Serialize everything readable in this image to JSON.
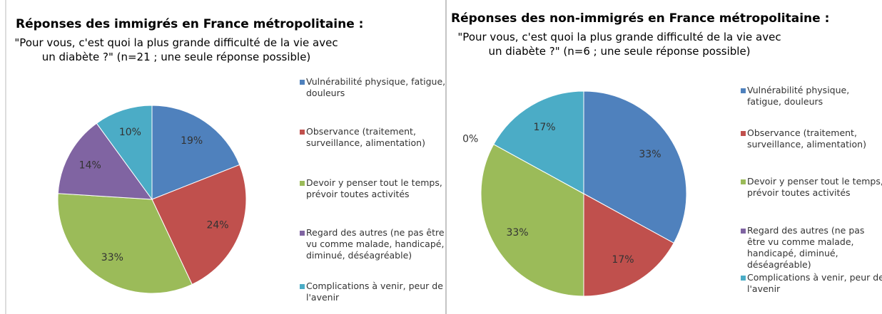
{
  "chart_data": [
    {
      "type": "pie",
      "title": "Réponses des immigrés en France métropolitaine :",
      "subtitle": "\"Pour vous, c'est quoi la plus grande difficulté de la vie avec un diabète ?\" (n=21 ; une seule réponse possible)",
      "categories": [
        "Vulnérabilité physique, fatigue, douleurs",
        "Observance (traitement, surveillance, alimentation)",
        "Devoir y penser tout le temps, prévoir toutes activités",
        "Regard des autres (ne pas être vu comme malade, handicapé, diminué, déséagréable)",
        "Complications à venir, peur de l'avenir"
      ],
      "values": [
        19,
        24,
        33,
        14,
        10
      ],
      "value_labels": [
        "19%",
        "24%",
        "33%",
        "14%",
        "10%"
      ],
      "colors": [
        "#4f81bd",
        "#c0504d",
        "#9bbb59",
        "#8064a2",
        "#4bacc6"
      ],
      "legend": "right"
    },
    {
      "type": "pie",
      "title": "Réponses des non-immigrés en France métropolitaine :",
      "subtitle": "\"Pour vous, c'est quoi la plus grande difficulté de la vie avec un diabète ?\" (n=6 ; une seule réponse possible)",
      "categories": [
        "Vulnérabilité physique, fatigue, douleurs",
        "Observance (traitement, surveillance, alimentation)",
        "Devoir y penser tout le temps, prévoir toutes activités",
        "Regard des autres (ne pas être vu comme malade, handicapé, diminué, déséagréable)",
        "Complications à venir, peur de l'avenir"
      ],
      "values": [
        33,
        17,
        33,
        0,
        17
      ],
      "value_labels": [
        "33%",
        "17%",
        "33%",
        "0%",
        "17%"
      ],
      "colors": [
        "#4f81bd",
        "#c0504d",
        "#9bbb59",
        "#8064a2",
        "#4bacc6"
      ],
      "legend": "right"
    }
  ]
}
